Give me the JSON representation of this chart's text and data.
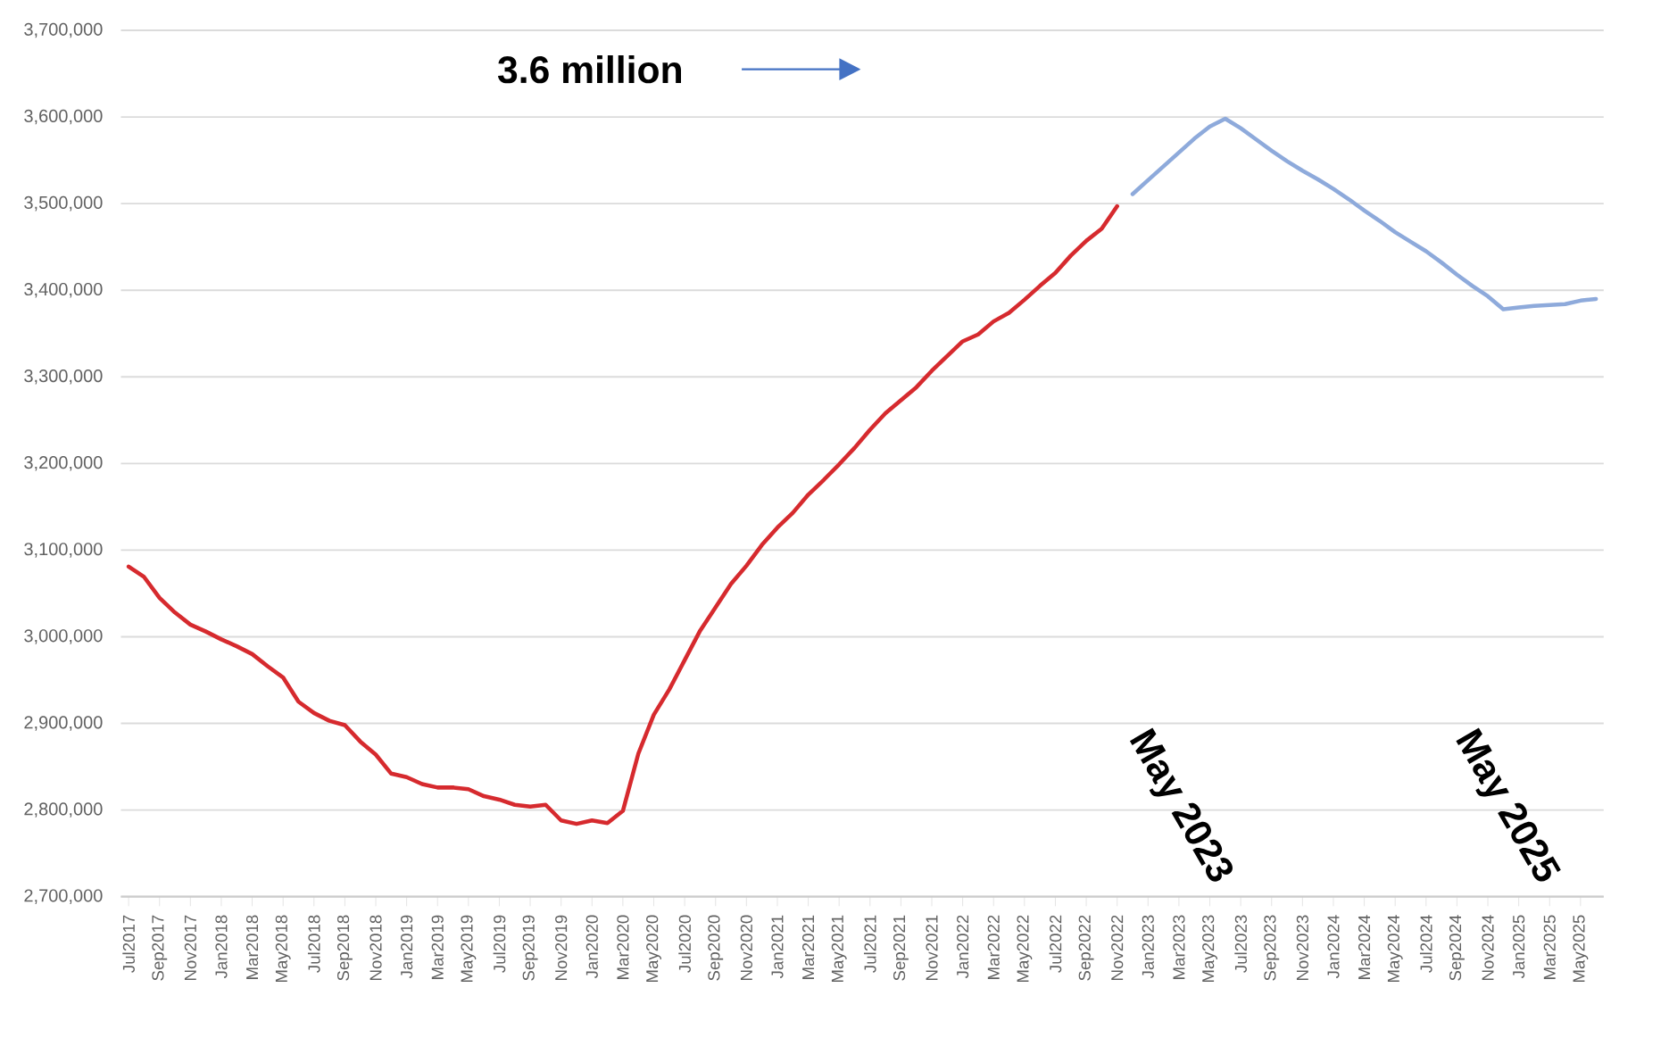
{
  "chart_data": {
    "type": "line",
    "categories": [
      "Jul2017",
      null,
      "Sep2017",
      null,
      "Nov2017",
      null,
      "Jan2018",
      null,
      "Mar2018",
      null,
      "May2018",
      null,
      "Jul2018",
      null,
      "Sep2018",
      null,
      "Nov2018",
      null,
      "Jan2019",
      null,
      "Mar2019",
      null,
      "May2019",
      null,
      "Jul2019",
      null,
      "Sep2019",
      null,
      "Nov2019",
      null,
      "Jan2020",
      null,
      "Mar2020",
      null,
      "May2020",
      null,
      "Jul2020",
      null,
      "Sep2020",
      null,
      "Nov2020",
      null,
      "Jan2021",
      null,
      "Mar2021",
      null,
      "May2021",
      null,
      "Jul2021",
      null,
      "Sep2021",
      null,
      "Nov2021",
      null,
      "Jan2022",
      null,
      "Mar2022",
      null,
      "May2022",
      null,
      "Jul2022",
      null,
      "Sep2022",
      null,
      "Nov2022",
      null,
      "Jan2023",
      null,
      "Mar2023",
      null,
      "May2023",
      null,
      "Jul2023",
      null,
      "Sep2023",
      null,
      "Nov2023",
      null,
      "Jan2024",
      null,
      "Mar2024",
      null,
      "May2024",
      null,
      "Jul2024",
      null,
      "Sep2024",
      null,
      "Nov2024",
      null,
      "Jan2025",
      null,
      "Mar2025",
      null,
      "May2025",
      null
    ],
    "series": [
      {
        "color": "#d62a2e",
        "values": [
          3081000,
          3069000,
          3045000,
          3028000,
          3014000,
          3006000,
          2997000,
          2989000,
          2980000,
          2966000,
          2953000,
          2925000,
          2912000,
          2903000,
          2898000,
          2879000,
          2864000,
          2842000,
          2838000,
          2830000,
          2826000,
          2826000,
          2824000,
          2816000,
          2812000,
          2806000,
          2804000,
          2806000,
          2788000,
          2784000,
          2788000,
          2785000,
          2799000,
          2865000,
          2910000,
          2939000,
          2973000,
          3007000,
          3034000,
          3061000,
          3082000,
          3106000,
          3126000,
          3143000,
          3164000,
          3181000,
          3199000,
          3218000,
          3239000,
          3258000,
          3273000,
          3288000,
          3307000,
          3324000,
          3341000,
          3349000,
          3364000,
          3374000,
          3389000,
          3405000,
          3420000,
          3440000,
          3457000,
          3471000,
          3497000,
          null,
          null,
          null,
          null,
          null,
          null,
          null,
          null,
          null,
          null,
          null,
          null,
          null,
          null,
          null,
          null,
          null,
          null,
          null,
          null,
          null,
          null,
          null,
          null,
          null,
          null,
          null,
          null,
          null,
          null,
          null
        ]
      },
      {
        "color": "#8eaadb",
        "values": [
          null,
          null,
          null,
          null,
          null,
          null,
          null,
          null,
          null,
          null,
          null,
          null,
          null,
          null,
          null,
          null,
          null,
          null,
          null,
          null,
          null,
          null,
          null,
          null,
          null,
          null,
          null,
          null,
          null,
          null,
          null,
          null,
          null,
          null,
          null,
          null,
          null,
          null,
          null,
          null,
          null,
          null,
          null,
          null,
          null,
          null,
          null,
          null,
          null,
          null,
          null,
          null,
          null,
          null,
          null,
          null,
          null,
          null,
          null,
          null,
          null,
          null,
          null,
          null,
          null,
          3511000,
          3527000,
          3543000,
          3559000,
          3575000,
          3589000,
          3598000,
          3587000,
          3574000,
          3561000,
          3549000,
          3538000,
          3528000,
          3517000,
          3505000,
          3492000,
          3480000,
          3467000,
          3456000,
          3445000,
          3432000,
          3418000,
          3405000,
          3393000,
          3378000,
          3380000,
          3382000,
          3383000,
          3384000,
          3388000,
          3390000
        ]
      }
    ],
    "ylim": [
      2700000,
      3700000
    ],
    "yticks": [
      {
        "value": 2700000,
        "label": "2,700,000"
      },
      {
        "value": 2800000,
        "label": "2,800,000"
      },
      {
        "value": 2900000,
        "label": "2,900,000"
      },
      {
        "value": 3000000,
        "label": "3,000,000"
      },
      {
        "value": 3100000,
        "label": "3,100,000"
      },
      {
        "value": 3200000,
        "label": "3,200,000"
      },
      {
        "value": 3300000,
        "label": "3,300,000"
      },
      {
        "value": 3400000,
        "label": "3,400,000"
      },
      {
        "value": 3500000,
        "label": "3,500,000"
      },
      {
        "value": 3600000,
        "label": "3,600,000"
      },
      {
        "value": 3700000,
        "label": "3,700,000"
      }
    ],
    "grid": "y",
    "annotations": [
      "3.6 million",
      "May 2023",
      "May 2025"
    ]
  }
}
